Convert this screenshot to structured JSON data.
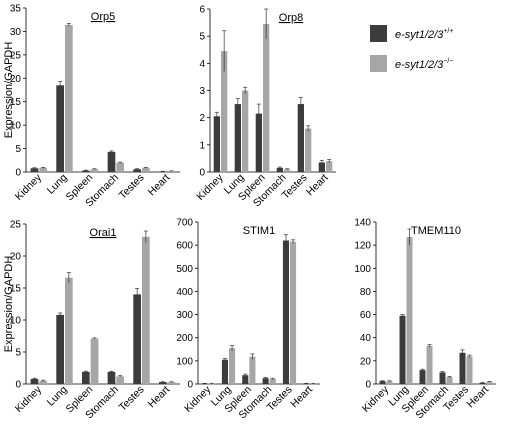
{
  "legend": {
    "items": [
      {
        "base": "e-syt1/2/3",
        "sup": "+/+",
        "color": "#3c3c3c"
      },
      {
        "base": "e-syt1/2/3",
        "sup": "−/−",
        "color": "#a6a6a6"
      }
    ]
  },
  "colors": {
    "wildtype": "#3c3c3c",
    "knockout": "#a6a6a6",
    "axis": "#000000"
  },
  "chart_data": [
    {
      "type": "bar",
      "title": "Orp5",
      "ylabel": "Expression/GAPDH",
      "categories": [
        "Kidney",
        "Lung",
        "Spleen",
        "Stomach",
        "Testes",
        "Heart"
      ],
      "ylim": [
        0,
        35
      ],
      "yticks": [
        0,
        5,
        10,
        15,
        20,
        25,
        30,
        35
      ],
      "series": [
        {
          "name": "e-syt1/2/3 +/+",
          "values": [
            0.8,
            18.5,
            0.3,
            4.3,
            0.6,
            0.1
          ],
          "errors": [
            0.1,
            0.8,
            0.1,
            0.2,
            0.1,
            0.05
          ]
        },
        {
          "name": "e-syt1/2/3 −/−",
          "values": [
            0.9,
            31.4,
            0.6,
            2.0,
            0.9,
            0.2
          ],
          "errors": [
            0.1,
            0.3,
            0.1,
            0.1,
            0.1,
            0.05
          ]
        }
      ]
    },
    {
      "type": "bar",
      "title": "Orp8",
      "ylabel": "",
      "categories": [
        "Kidney",
        "Lung",
        "Spleen",
        "Stomach",
        "Testes",
        "Heart"
      ],
      "ylim": [
        0,
        6
      ],
      "yticks": [
        0,
        1,
        2,
        3,
        4,
        5,
        6
      ],
      "series": [
        {
          "name": "e-syt1/2/3 +/+",
          "values": [
            2.05,
            2.5,
            2.15,
            0.15,
            2.5,
            0.35
          ],
          "errors": [
            0.15,
            0.2,
            0.35,
            0.03,
            0.25,
            0.08
          ]
        },
        {
          "name": "e-syt1/2/3 −/−",
          "values": [
            4.45,
            3.0,
            5.45,
            0.1,
            1.6,
            0.4
          ],
          "errors": [
            0.75,
            0.12,
            0.55,
            0.02,
            0.1,
            0.06
          ]
        }
      ]
    },
    {
      "type": "bar",
      "title": "Orai1",
      "ylabel": "Expression/GAPDH",
      "categories": [
        "Kidney",
        "Lung",
        "Spleen",
        "Stomach",
        "Testes",
        "Heart"
      ],
      "ylim": [
        0,
        25
      ],
      "yticks": [
        0,
        5,
        10,
        15,
        20,
        25
      ],
      "series": [
        {
          "name": "e-syt1/2/3 +/+",
          "values": [
            0.8,
            10.8,
            1.9,
            1.9,
            14.0,
            0.3
          ],
          "errors": [
            0.1,
            0.3,
            0.1,
            0.1,
            0.9,
            0.05
          ]
        },
        {
          "name": "e-syt1/2/3 −/−",
          "values": [
            0.5,
            16.6,
            7.1,
            1.2,
            23.0,
            0.3
          ],
          "errors": [
            0.1,
            0.8,
            0.1,
            0.1,
            0.9,
            0.05
          ]
        }
      ]
    },
    {
      "type": "bar",
      "title": "STIM1",
      "ylabel": "",
      "categories": [
        "Kidney",
        "Lung",
        "Spleen",
        "Stomach",
        "Testes",
        "Heart"
      ],
      "ylim": [
        0,
        700
      ],
      "yticks": [
        0,
        100,
        200,
        300,
        400,
        500,
        600,
        700
      ],
      "series": [
        {
          "name": "e-syt1/2/3 +/+",
          "values": [
            2,
            105,
            38,
            25,
            620,
            2
          ],
          "errors": [
            1,
            5,
            5,
            3,
            25,
            1
          ]
        },
        {
          "name": "e-syt1/2/3 −/−",
          "values": [
            2,
            155,
            118,
            22,
            615,
            2
          ],
          "errors": [
            1,
            12,
            12,
            3,
            8,
            1
          ]
        }
      ]
    },
    {
      "type": "bar",
      "title": "TMEM110",
      "ylabel": "",
      "categories": [
        "Kidney",
        "Lung",
        "Spleen",
        "Stomach",
        "Testes",
        "Heart"
      ],
      "ylim": [
        0,
        140
      ],
      "yticks": [
        0,
        20,
        40,
        60,
        80,
        100,
        120,
        140
      ],
      "series": [
        {
          "name": "e-syt1/2/3 +/+",
          "values": [
            2.5,
            59,
            12,
            10,
            27,
            1
          ],
          "errors": [
            0.3,
            1,
            0.8,
            0.8,
            2.5,
            0.2
          ]
        },
        {
          "name": "e-syt1/2/3 −/−",
          "values": [
            2.5,
            127,
            33,
            6,
            24,
            2
          ],
          "errors": [
            0.3,
            7,
            1,
            0.5,
            1,
            0.2
          ]
        }
      ]
    }
  ]
}
